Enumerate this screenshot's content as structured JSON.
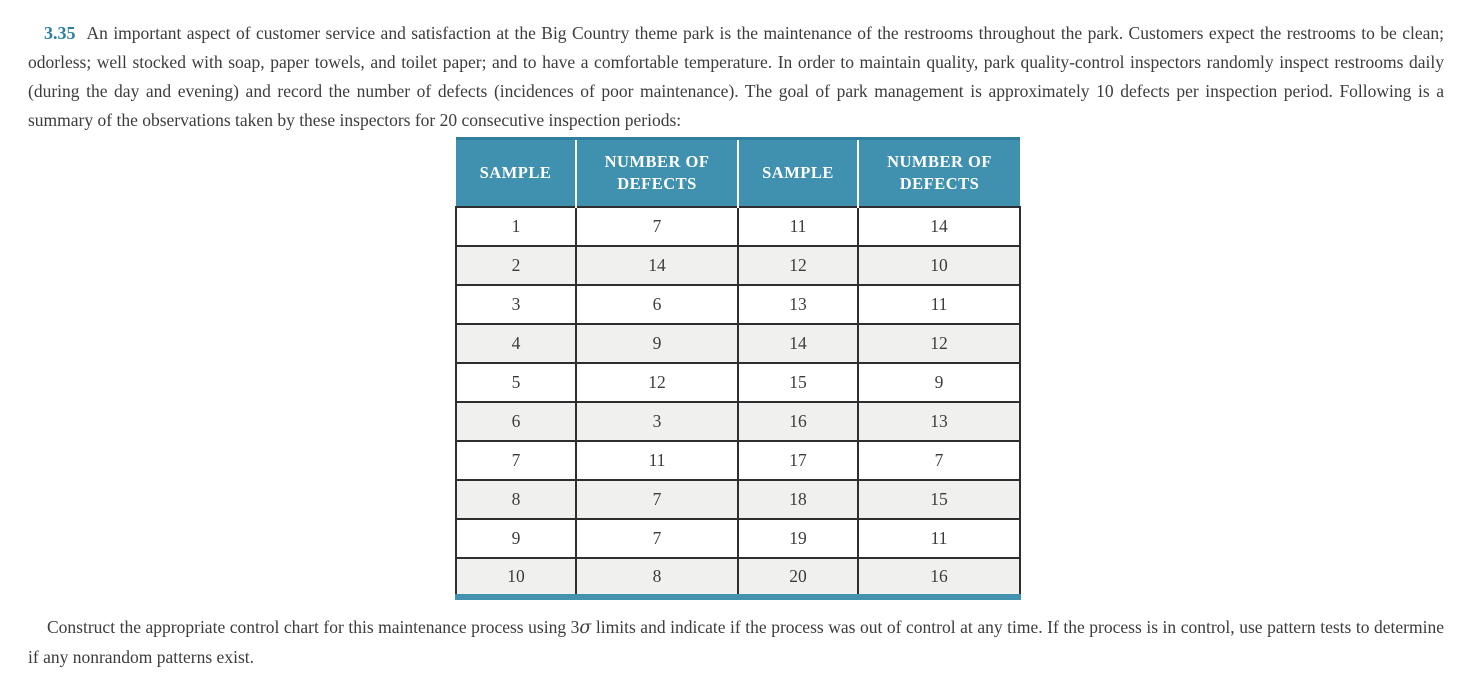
{
  "problem": {
    "number": "3.35",
    "intro": "An important aspect of customer service and satisfaction at the Big Country theme park is the maintenance of the restrooms throughout the park. Customers expect the restrooms to be clean; odorless; well stocked with soap, paper towels, and toilet paper; and to have a comfortable temperature. In order to maintain quality, park quality-control inspectors randomly inspect restrooms daily (during the day and evening) and record the number of defects (incidences of poor maintenance). The goal of park management is approximately 10 defects per inspection period. Following is a summary of the observations taken by these inspectors for 20 consecutive inspection periods:",
    "question_pre": "Construct the appropriate control chart for this maintenance process using 3",
    "sigma": "σ",
    "question_post": " limits and indicate if the process was out of control at any time. If the process is in control, use pattern tests to determine if any nonrandom patterns exist."
  },
  "table": {
    "headers": [
      "SAMPLE",
      "NUMBER OF DEFECTS",
      "SAMPLE",
      "NUMBER OF DEFECTS"
    ],
    "rows": [
      [
        "1",
        "7",
        "11",
        "14"
      ],
      [
        "2",
        "14",
        "12",
        "10"
      ],
      [
        "3",
        "6",
        "13",
        "11"
      ],
      [
        "4",
        "9",
        "14",
        "12"
      ],
      [
        "5",
        "12",
        "15",
        "9"
      ],
      [
        "6",
        "3",
        "16",
        "13"
      ],
      [
        "7",
        "11",
        "17",
        "7"
      ],
      [
        "8",
        "7",
        "18",
        "15"
      ],
      [
        "9",
        "7",
        "19",
        "11"
      ],
      [
        "10",
        "8",
        "20",
        "16"
      ]
    ]
  },
  "colors": {
    "accent_teal": "#4090b0",
    "header_top_border": "#2f7e9e",
    "problem_number": "#2d7f9f",
    "alt_row": "#f0f0ee",
    "cell_border": "#2e2e2e",
    "body_text": "#3c3c3c"
  }
}
